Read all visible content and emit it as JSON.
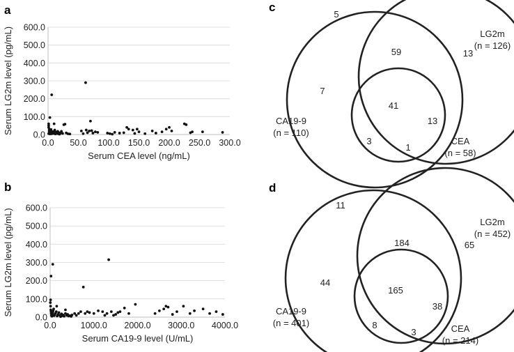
{
  "panels": {
    "a": "a",
    "b": "b",
    "c": "c",
    "d": "d"
  },
  "chart_data": [
    {
      "type": "scatter",
      "panel": "a",
      "xlabel": "Serum CEA level (ng/mL)",
      "ylabel": "Serum LG2m level (pg/mL)",
      "xlim": [
        0,
        300
      ],
      "ylim": [
        0,
        600
      ],
      "xticks": [
        "0.0",
        "50.0",
        "100.0",
        "150.0",
        "200.0",
        "250.0",
        "300.0"
      ],
      "yticks": [
        "0.0",
        "100.0",
        "200.0",
        "300.0",
        "400.0",
        "500.0",
        "600.0"
      ],
      "grid": true,
      "points": [
        [
          1,
          60
        ],
        [
          1,
          50
        ],
        [
          1,
          40
        ],
        [
          2,
          30
        ],
        [
          2,
          22
        ],
        [
          2,
          15
        ],
        [
          3,
          8
        ],
        [
          1,
          5
        ],
        [
          3,
          3
        ],
        [
          4,
          12
        ],
        [
          5,
          20
        ],
        [
          5,
          28
        ],
        [
          6,
          4
        ],
        [
          7,
          10
        ],
        [
          8,
          16
        ],
        [
          9,
          6
        ],
        [
          10,
          12
        ],
        [
          11,
          25
        ],
        [
          12,
          3
        ],
        [
          13,
          14
        ],
        [
          14,
          8
        ],
        [
          15,
          6
        ],
        [
          16,
          18
        ],
        [
          17,
          4
        ],
        [
          18,
          10
        ],
        [
          19,
          2
        ],
        [
          20,
          7
        ],
        [
          3,
          95
        ],
        [
          6,
          222
        ],
        [
          10,
          60
        ],
        [
          22,
          18
        ],
        [
          24,
          6
        ],
        [
          26,
          55
        ],
        [
          28,
          58
        ],
        [
          30,
          9
        ],
        [
          33,
          4
        ],
        [
          36,
          3
        ],
        [
          62,
          290
        ],
        [
          55,
          20
        ],
        [
          58,
          5
        ],
        [
          63,
          25
        ],
        [
          65,
          10
        ],
        [
          68,
          20
        ],
        [
          70,
          75
        ],
        [
          72,
          22
        ],
        [
          74,
          8
        ],
        [
          78,
          15
        ],
        [
          82,
          12
        ],
        [
          98,
          8
        ],
        [
          102,
          5
        ],
        [
          106,
          2
        ],
        [
          110,
          12
        ],
        [
          118,
          8
        ],
        [
          125,
          10
        ],
        [
          130,
          40
        ],
        [
          133,
          30
        ],
        [
          140,
          25
        ],
        [
          143,
          6
        ],
        [
          147,
          30
        ],
        [
          150,
          15
        ],
        [
          160,
          5
        ],
        [
          172,
          20
        ],
        [
          178,
          8
        ],
        [
          188,
          15
        ],
        [
          195,
          30
        ],
        [
          200,
          40
        ],
        [
          204,
          20
        ],
        [
          225,
          60
        ],
        [
          228,
          55
        ],
        [
          235,
          10
        ],
        [
          238,
          15
        ],
        [
          255,
          15
        ],
        [
          288,
          12
        ]
      ]
    },
    {
      "type": "scatter",
      "panel": "b",
      "xlabel": "Serum CA19-9 level (U/mL)",
      "ylabel": "Serum LG2m level (pg/mL)",
      "xlim": [
        0,
        4000
      ],
      "ylim": [
        0,
        600
      ],
      "xticks": [
        "0.0",
        "1000.0",
        "2000.0",
        "3000.0",
        "4000.0"
      ],
      "yticks": [
        "0.0",
        "100.0",
        "200.0",
        "300.0",
        "400.0",
        "500.0",
        "600.0"
      ],
      "grid": true,
      "points": [
        [
          5,
          80
        ],
        [
          10,
          60
        ],
        [
          15,
          40
        ],
        [
          20,
          30
        ],
        [
          25,
          20
        ],
        [
          30,
          10
        ],
        [
          40,
          5
        ],
        [
          50,
          15
        ],
        [
          60,
          25
        ],
        [
          70,
          35
        ],
        [
          80,
          45
        ],
        [
          90,
          8
        ],
        [
          100,
          12
        ],
        [
          120,
          20
        ],
        [
          140,
          30
        ],
        [
          160,
          6
        ],
        [
          180,
          15
        ],
        [
          200,
          25
        ],
        [
          220,
          10
        ],
        [
          240,
          3
        ],
        [
          260,
          18
        ],
        [
          280,
          8
        ],
        [
          300,
          12
        ],
        [
          320,
          5
        ],
        [
          350,
          20
        ],
        [
          380,
          10
        ],
        [
          400,
          15
        ],
        [
          420,
          6
        ],
        [
          450,
          8
        ],
        [
          480,
          4
        ],
        [
          500,
          12
        ],
        [
          20,
          225
        ],
        [
          60,
          290
        ],
        [
          10,
          95
        ],
        [
          150,
          60
        ],
        [
          350,
          40
        ],
        [
          560,
          20
        ],
        [
          600,
          10
        ],
        [
          650,
          20
        ],
        [
          700,
          30
        ],
        [
          760,
          165
        ],
        [
          800,
          20
        ],
        [
          850,
          30
        ],
        [
          900,
          25
        ],
        [
          1000,
          20
        ],
        [
          1100,
          35
        ],
        [
          1200,
          30
        ],
        [
          1250,
          10
        ],
        [
          1300,
          20
        ],
        [
          1340,
          315
        ],
        [
          1400,
          30
        ],
        [
          1450,
          10
        ],
        [
          1500,
          15
        ],
        [
          1550,
          25
        ],
        [
          1600,
          30
        ],
        [
          1700,
          50
        ],
        [
          1800,
          20
        ],
        [
          1950,
          70
        ],
        [
          2400,
          20
        ],
        [
          2500,
          35
        ],
        [
          2600,
          45
        ],
        [
          2650,
          60
        ],
        [
          2700,
          55
        ],
        [
          2800,
          15
        ],
        [
          2900,
          30
        ],
        [
          3050,
          60
        ],
        [
          3200,
          20
        ],
        [
          3300,
          35
        ],
        [
          3500,
          45
        ],
        [
          3650,
          20
        ],
        [
          3800,
          30
        ],
        [
          3950,
          15
        ]
      ]
    }
  ],
  "venn": [
    {
      "panel": "c",
      "sets": {
        "ca199": {
          "name": "CA19-9",
          "n": "(n = 110)"
        },
        "lg2m": {
          "name": "LG2m",
          "n": "(n = 126)"
        },
        "cea": {
          "name": "CEA",
          "n": "(n = 58)"
        }
      },
      "regions": {
        "outside": "5",
        "ca199_only": "7",
        "lg2m_only": "13",
        "ca199_lg2m": "59",
        "all_three": "41",
        "lg2m_cea": "13",
        "ca199_cea": "3",
        "cea_only": "1"
      }
    },
    {
      "panel": "d",
      "sets": {
        "ca199": {
          "name": "CA19-9",
          "n": "(n = 401)"
        },
        "lg2m": {
          "name": "LG2m",
          "n": "(n = 452)"
        },
        "cea": {
          "name": "CEA",
          "n": "(n = 214)"
        }
      },
      "regions": {
        "outside": "11",
        "ca199_only": "44",
        "lg2m_only": "65",
        "ca199_lg2m": "184",
        "all_three": "165",
        "lg2m_cea": "38",
        "ca199_cea": "8",
        "cea_only": "3"
      }
    }
  ]
}
